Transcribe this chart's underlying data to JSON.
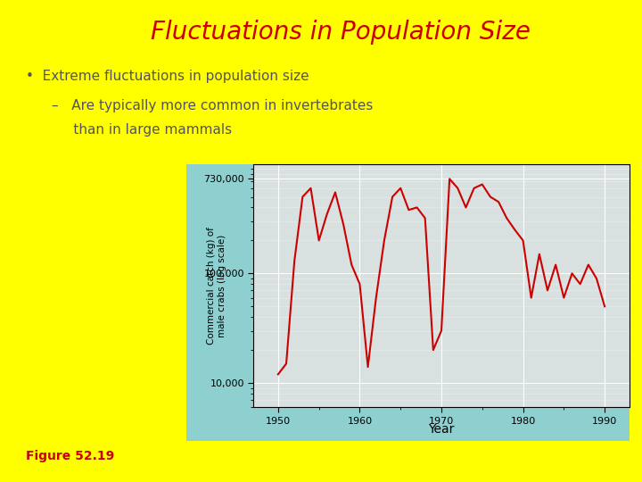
{
  "title": "Fluctuations in Population Size",
  "title_color": "#cc0000",
  "title_fontsize": 20,
  "background_color": "#ffff00",
  "bullet1": "•  Extreme fluctuations in population size",
  "bullet2_line1": "–   Are typically more common in invertebrates",
  "bullet2_line2": "     than in large mammals",
  "text_color": "#555555",
  "figure_caption": "Figure 52.19",
  "figure_caption_color": "#cc0000",
  "teal_color": "#8ecfcf",
  "plot_area_color": "#d8e0e0",
  "line_color": "#cc0000",
  "xlabel": "Year",
  "ylabel_line1": "Commercial catch (kg) of",
  "ylabel_line2": "male crabs (log scale)",
  "years": [
    1950,
    1951,
    1952,
    1953,
    1954,
    1955,
    1956,
    1957,
    1958,
    1959,
    1960,
    1961,
    1962,
    1963,
    1964,
    1965,
    1966,
    1967,
    1968,
    1969,
    1970,
    1971,
    1972,
    1973,
    1974,
    1975,
    1976,
    1977,
    1978,
    1979,
    1980,
    1981,
    1982,
    1983,
    1984,
    1985,
    1986,
    1987,
    1988,
    1989,
    1990
  ],
  "values": [
    12000,
    15000,
    130000,
    500000,
    600000,
    200000,
    350000,
    550000,
    280000,
    120000,
    80000,
    14000,
    60000,
    200000,
    500000,
    600000,
    380000,
    400000,
    320000,
    20000,
    30000,
    730000,
    600000,
    400000,
    600000,
    650000,
    500000,
    450000,
    320000,
    250000,
    200000,
    60000,
    150000,
    70000,
    120000,
    60000,
    100000,
    80000,
    120000,
    90000,
    50000
  ],
  "yticks": [
    10000,
    100000,
    730000
  ],
  "ytick_labels": [
    "10,000",
    "100,000",
    "730,000"
  ],
  "xticks": [
    1950,
    1960,
    1970,
    1980,
    1990
  ],
  "ylim_low": 6000,
  "ylim_high": 1000000,
  "xlim_left": 1947,
  "xlim_right": 1993
}
